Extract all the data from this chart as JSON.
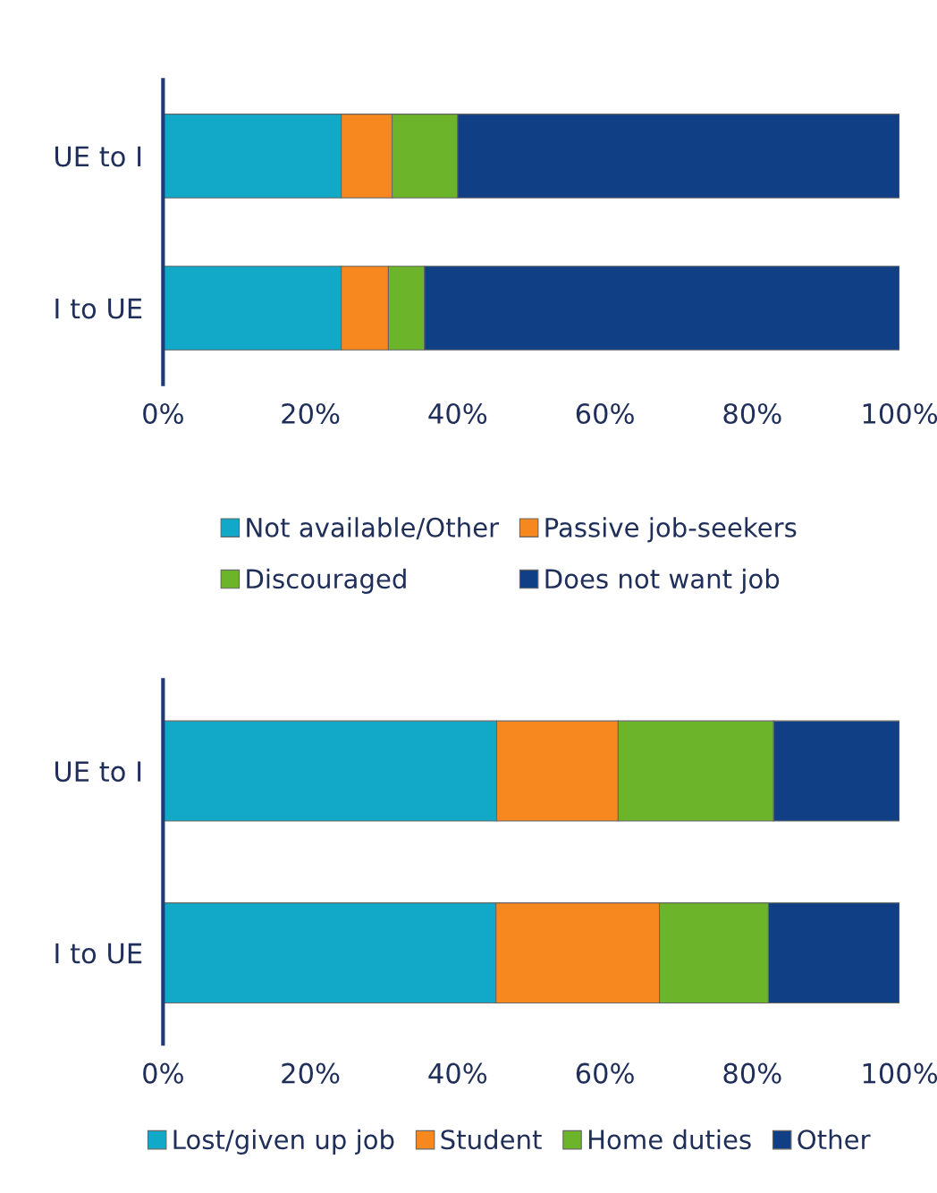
{
  "chart_data": [
    {
      "type": "bar",
      "orientation": "horizontal",
      "stacked": true,
      "categories": [
        "UE to I",
        "I to UE"
      ],
      "legend": "bottom",
      "series": [
        {
          "name": "Not available/Other",
          "color": "#12a9c9",
          "values": [
            24.2,
            24.2
          ]
        },
        {
          "name": "Passive job-seekers",
          "color": "#f7871f",
          "values": [
            6.9,
            6.4
          ]
        },
        {
          "name": "Discouraged",
          "color": "#6cb52a",
          "values": [
            8.9,
            4.9
          ]
        },
        {
          "name": "Does not want job",
          "color": "#113f85",
          "values": [
            60.0,
            64.5
          ]
        }
      ],
      "xlim": [
        0,
        100
      ],
      "xticks": [
        {
          "value": 0,
          "label": "0%"
        },
        {
          "value": 20,
          "label": "20%"
        },
        {
          "value": 40,
          "label": "40%"
        },
        {
          "value": 60,
          "label": "60%"
        },
        {
          "value": 80,
          "label": "80%"
        },
        {
          "value": 100,
          "label": "100%"
        }
      ]
    },
    {
      "type": "bar",
      "orientation": "horizontal",
      "stacked": true,
      "categories": [
        "UE to I",
        "I to UE"
      ],
      "legend": "bottom",
      "series": [
        {
          "name": "Lost/given up job",
          "color": "#12a9c9",
          "values": [
            45.3,
            45.2
          ]
        },
        {
          "name": "Student",
          "color": "#f7871f",
          "values": [
            16.5,
            22.2
          ]
        },
        {
          "name": "Home duties",
          "color": "#6cb52a",
          "values": [
            21.1,
            14.8
          ]
        },
        {
          "name": "Other",
          "color": "#113f85",
          "values": [
            17.1,
            17.8
          ]
        }
      ],
      "xlim": [
        0,
        100
      ],
      "xticks": [
        {
          "value": 0,
          "label": "0%"
        },
        {
          "value": 20,
          "label": "20%"
        },
        {
          "value": 40,
          "label": "40%"
        },
        {
          "value": 60,
          "label": "60%"
        },
        {
          "value": 80,
          "label": "80%"
        },
        {
          "value": 100,
          "label": "100%"
        }
      ]
    }
  ]
}
